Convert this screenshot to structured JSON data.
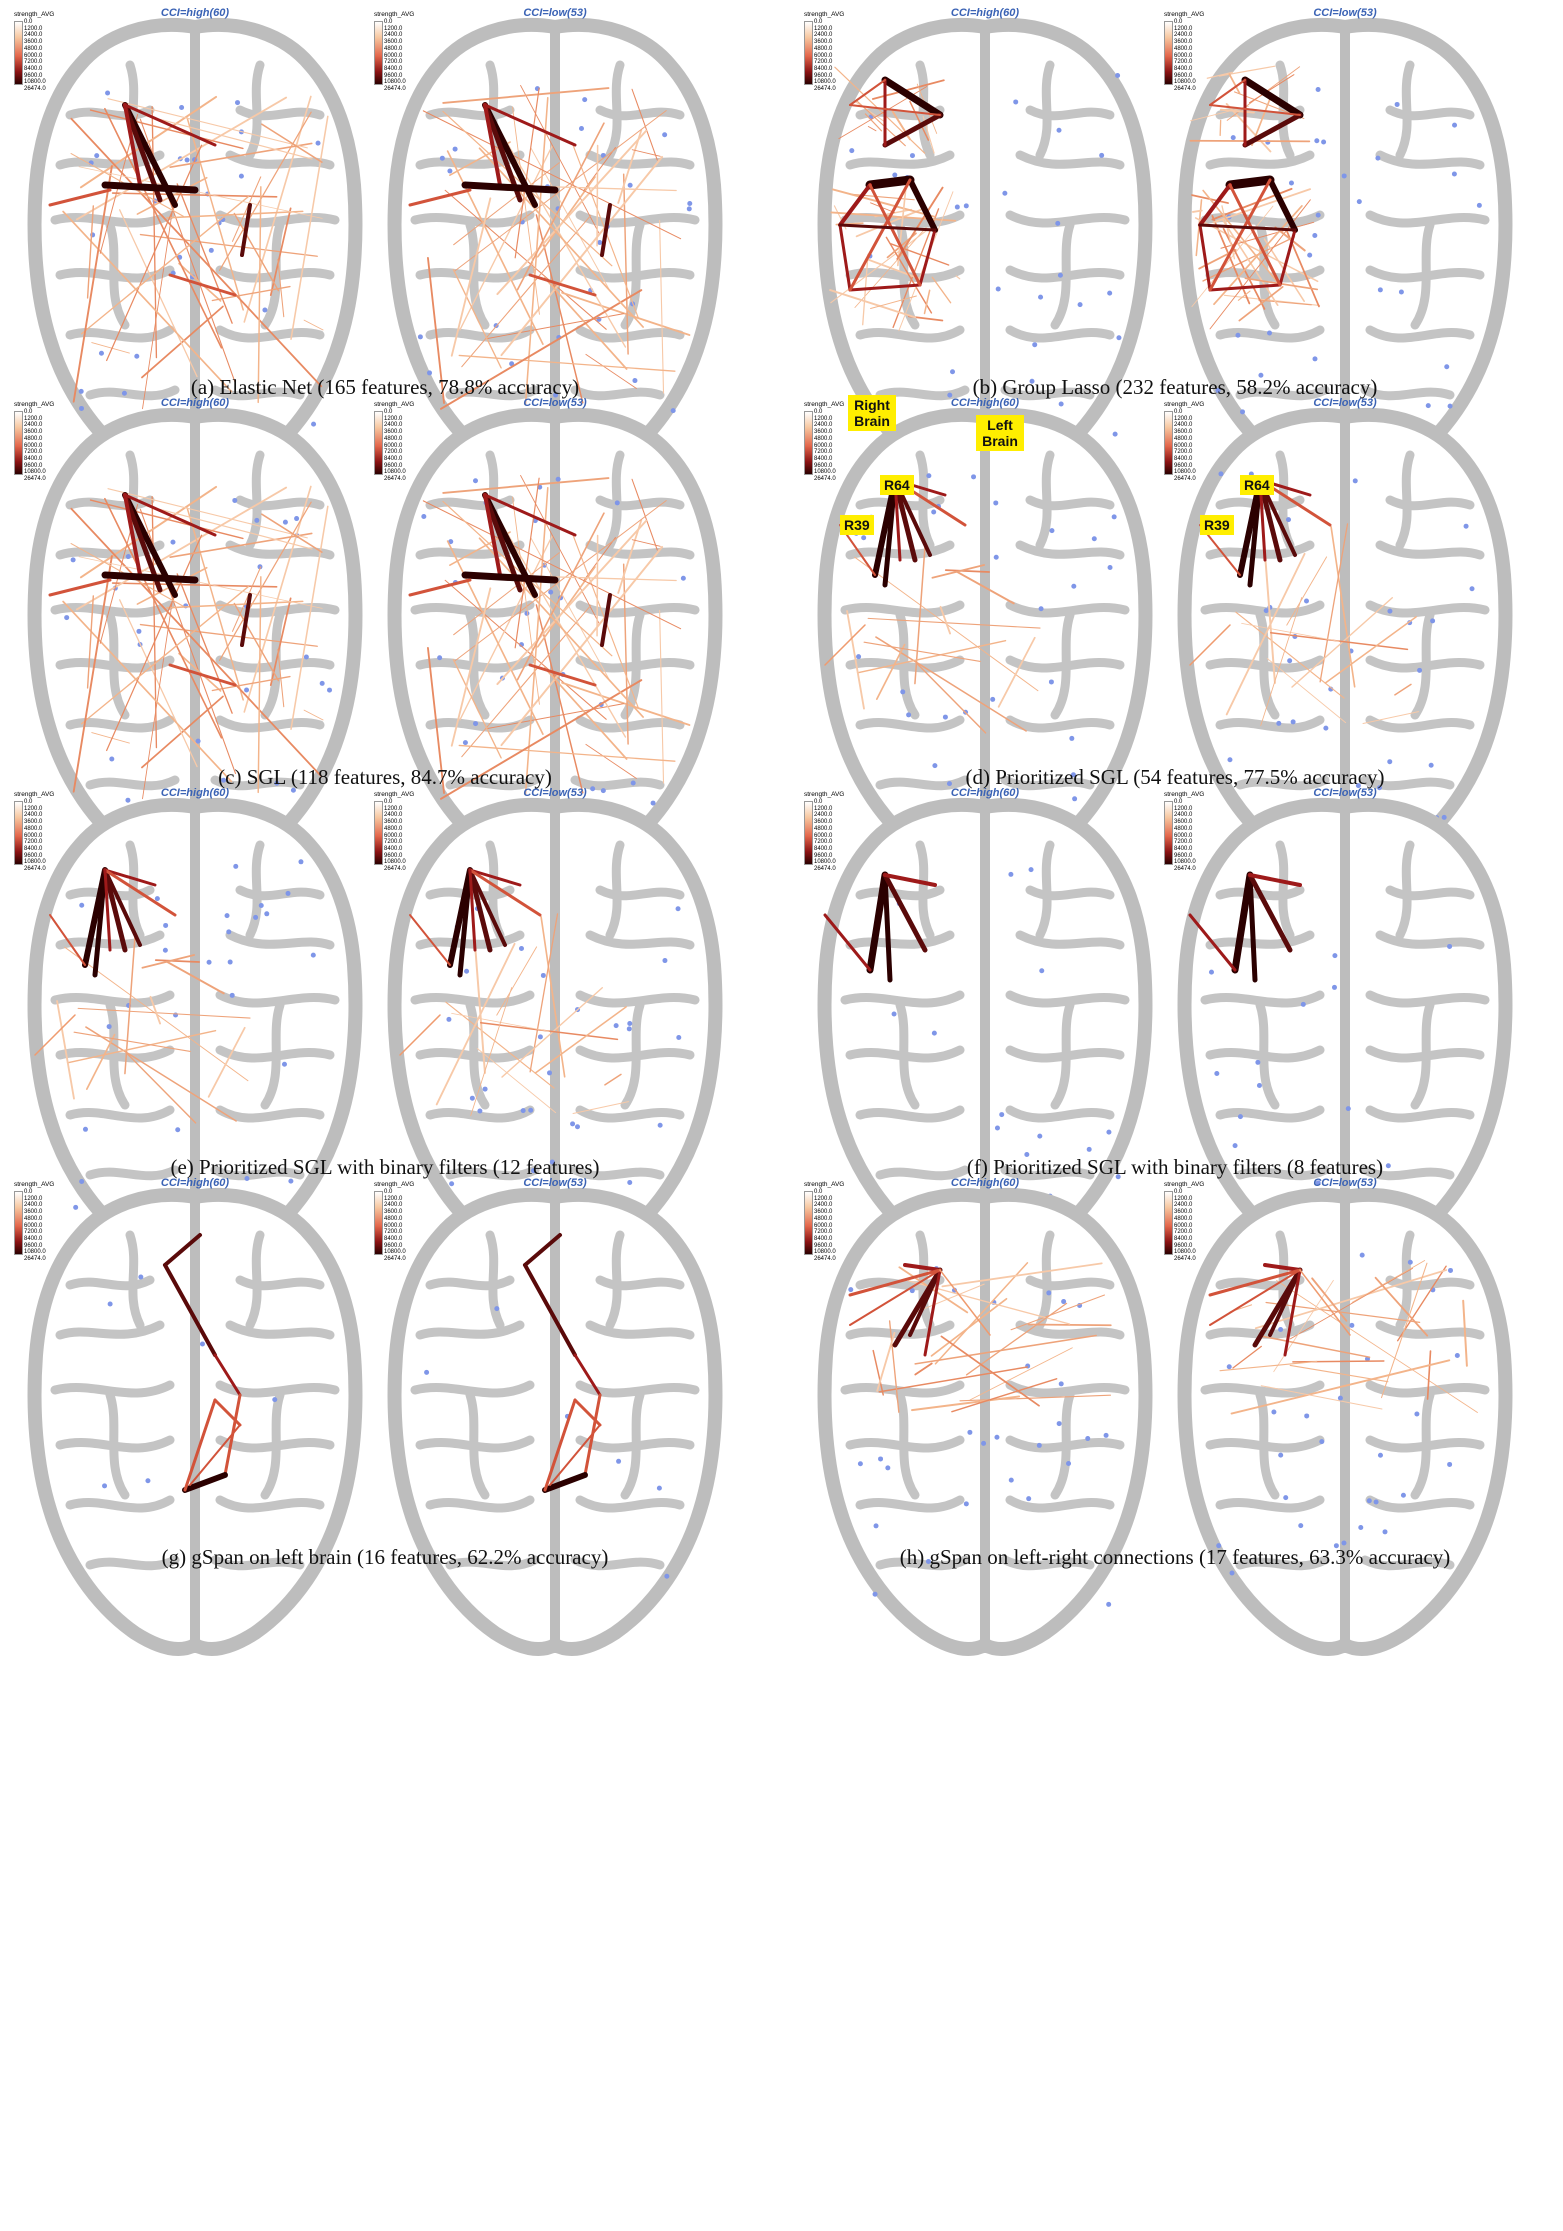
{
  "legend": {
    "title": "strength_AVG",
    "ticks": [
      "0.0",
      "1200.0",
      "2400.0",
      "3600.0",
      "4800.0",
      "6000.0",
      "7200.0",
      "8400.0",
      "9600.0",
      "10800.0",
      "26474.0"
    ]
  },
  "panels": [
    {
      "id": "a",
      "caption": "(a) Elastic Net (165 features, 78.8% accuracy)",
      "left": "CCI=high(60)",
      "right": "CCI=low(53)",
      "style": "dense",
      "legend": true
    },
    {
      "id": "b",
      "caption": "(b) Group Lasso (232 features, 58.2% accuracy)",
      "left": "CCI=high(60)",
      "right": "CCI=low(53)",
      "style": "grouped",
      "legend": true
    },
    {
      "id": "c",
      "caption": "(c) SGL (118 features, 84.7% accuracy)",
      "left": "CCI=high(60)",
      "right": "CCI=low(53)",
      "style": "dense",
      "legend": true
    },
    {
      "id": "d",
      "caption": "(d) Prioritized SGL (54 features, 77.5% accuracy)",
      "left": "CCI=high(60)",
      "right": "CCI=low(53)",
      "style": "star",
      "legend": true
    },
    {
      "id": "e",
      "caption": "(e) Prioritized SGL with binary filters (12 features)",
      "left": "CCI=high(60)",
      "right": "CCI=low(53)",
      "style": "star",
      "legend": true
    },
    {
      "id": "f",
      "caption": "(f) Prioritized SGL with binary filters (8 features)",
      "left": "CCI=high(60)",
      "right": "CCI=low(53)",
      "style": "starsmall",
      "legend": true
    },
    {
      "id": "g",
      "caption": "(g) gSpan on left brain (16 features, 62.2% accuracy)",
      "left": "CCI=high(60)",
      "right": "CCI=low(53)",
      "style": "leftchain",
      "legend": true
    },
    {
      "id": "h",
      "caption": "(h) gSpan on left-right connections (17 features, 63.3% accuracy)",
      "left": "CCI=high(60)",
      "right": "CCI=low(53)",
      "style": "lr",
      "legend": true
    }
  ],
  "labels": {
    "right_brain": "Right Brain",
    "left_brain": "Left Brain",
    "r64": "R64",
    "r39": "R39"
  }
}
